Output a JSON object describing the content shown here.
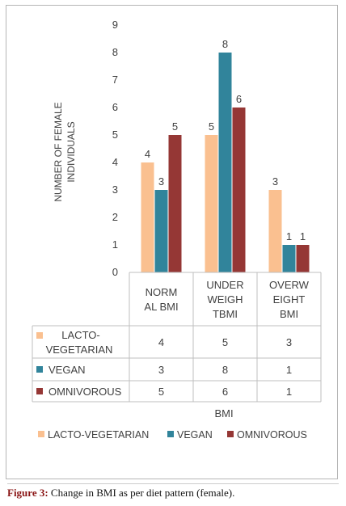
{
  "chart_data": {
    "type": "bar",
    "xlabel": "BMI",
    "ylabel": "NUMBER OF FEMALE INDIVIDUALS",
    "ylim": [
      0,
      9
    ],
    "yticks": [
      0,
      1,
      2,
      3,
      4,
      5,
      6,
      7,
      8,
      9
    ],
    "grid": false,
    "legend_position": "bottom",
    "categories": [
      [
        "NORM",
        "AL BMI"
      ],
      [
        "UNDER",
        "WEIGH",
        "TBMI"
      ],
      [
        "OVERW",
        "EIGHT",
        "BMI"
      ]
    ],
    "series": [
      {
        "name": "LACTO-VEGETARIAN",
        "table_label": [
          "LACTO-",
          "VEGETARIAN"
        ],
        "color": "#fac090",
        "values": [
          4,
          5,
          3
        ]
      },
      {
        "name": "VEGAN",
        "table_label": [
          "VEGAN"
        ],
        "color": "#31849b",
        "values": [
          3,
          8,
          1
        ]
      },
      {
        "name": "OMNIVOROUS",
        "table_label": [
          "OMNIVOROUS"
        ],
        "color": "#953735",
        "values": [
          5,
          6,
          1
        ]
      }
    ]
  },
  "caption": {
    "label": "Figure 3:",
    "text": " Change in BMI as per diet pattern (female)."
  }
}
